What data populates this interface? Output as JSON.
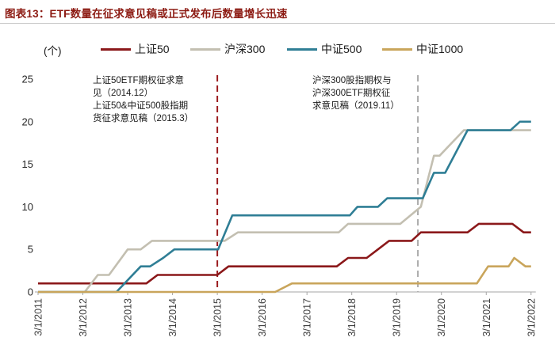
{
  "header": {
    "title": "图表13：ETF数量在征求意见稿或正式发布后数量增长迅速"
  },
  "chart_data": {
    "type": "line",
    "title": "ETF数量在征求意见稿或正式发布后数量增长迅速",
    "unit": "(个)",
    "ylabel": "",
    "xlabel": "",
    "ylim": [
      0,
      25
    ],
    "y_ticks": [
      0,
      5,
      10,
      15,
      20,
      25
    ],
    "x_ticks": [
      "3/1/2011",
      "3/1/2012",
      "3/1/2013",
      "3/1/2014",
      "3/1/2015",
      "3/1/2016",
      "3/1/2017",
      "3/1/2018",
      "3/1/2019",
      "3/1/2020",
      "3/1/2021",
      "3/1/2022"
    ],
    "x_months_range": [
      0,
      132
    ],
    "grid": "off",
    "legend_position": "top",
    "series": [
      {
        "name": "上证50",
        "color": "#8B181A",
        "points": [
          [
            0,
            1
          ],
          [
            29,
            1
          ],
          [
            32,
            2
          ],
          [
            48,
            2
          ],
          [
            51,
            3
          ],
          [
            80,
            3
          ],
          [
            83,
            4
          ],
          [
            88,
            4
          ],
          [
            91,
            5
          ],
          [
            94,
            6
          ],
          [
            100,
            6
          ],
          [
            102.5,
            7
          ],
          [
            115,
            7
          ],
          [
            118,
            8
          ],
          [
            127,
            8
          ],
          [
            130,
            7
          ],
          [
            132,
            7
          ]
        ]
      },
      {
        "name": "沪深300",
        "color": "#C3BFB1",
        "points": [
          [
            0,
            0
          ],
          [
            12.5,
            0
          ],
          [
            16,
            2
          ],
          [
            19,
            2
          ],
          [
            24,
            5
          ],
          [
            27.5,
            5
          ],
          [
            30.5,
            6
          ],
          [
            50,
            6
          ],
          [
            53.5,
            7
          ],
          [
            80.5,
            7
          ],
          [
            83,
            8
          ],
          [
            97,
            8
          ],
          [
            102.5,
            10
          ],
          [
            106,
            16
          ],
          [
            107.5,
            16
          ],
          [
            114,
            19
          ],
          [
            132,
            19
          ]
        ]
      },
      {
        "name": "中证500",
        "color": "#2F7E95",
        "points": [
          [
            0,
            0
          ],
          [
            21,
            0
          ],
          [
            27.5,
            3
          ],
          [
            30,
            3
          ],
          [
            33.5,
            4
          ],
          [
            36.5,
            5
          ],
          [
            48.2,
            5
          ],
          [
            52,
            9
          ],
          [
            83.5,
            9
          ],
          [
            85.5,
            10
          ],
          [
            91,
            10
          ],
          [
            93.5,
            11
          ],
          [
            103,
            11
          ],
          [
            106,
            14
          ],
          [
            109,
            14
          ],
          [
            115,
            19
          ],
          [
            126.5,
            19
          ],
          [
            129,
            20
          ],
          [
            132,
            20
          ]
        ]
      },
      {
        "name": "中证1000",
        "color": "#C9A55B",
        "points": [
          [
            0,
            0
          ],
          [
            63.5,
            0
          ],
          [
            68,
            1
          ],
          [
            117.5,
            1
          ],
          [
            120.5,
            3
          ],
          [
            126,
            3
          ],
          [
            127.5,
            4
          ],
          [
            130.5,
            3
          ],
          [
            132,
            3
          ]
        ]
      }
    ],
    "event_lines": [
      {
        "name": "上证50-2015-event-line",
        "x_month": 48,
        "color": "#9B1B1E",
        "style": "dashed"
      },
      {
        "name": "沪深300-2019-event-line",
        "x_month": 101.7,
        "color": "#ABABAB",
        "style": "dashed"
      }
    ],
    "annotations": [
      {
        "lines": [
          "上证50ETF期权征求意",
          "见（2014.12）",
          "上证50&中证500股指期",
          "货征求意见稿（2015.3）"
        ]
      },
      {
        "lines": [
          "沪深300股指期权与",
          "沪深300ETF期权征",
          "求意见稿（2019.11）"
        ]
      }
    ]
  }
}
